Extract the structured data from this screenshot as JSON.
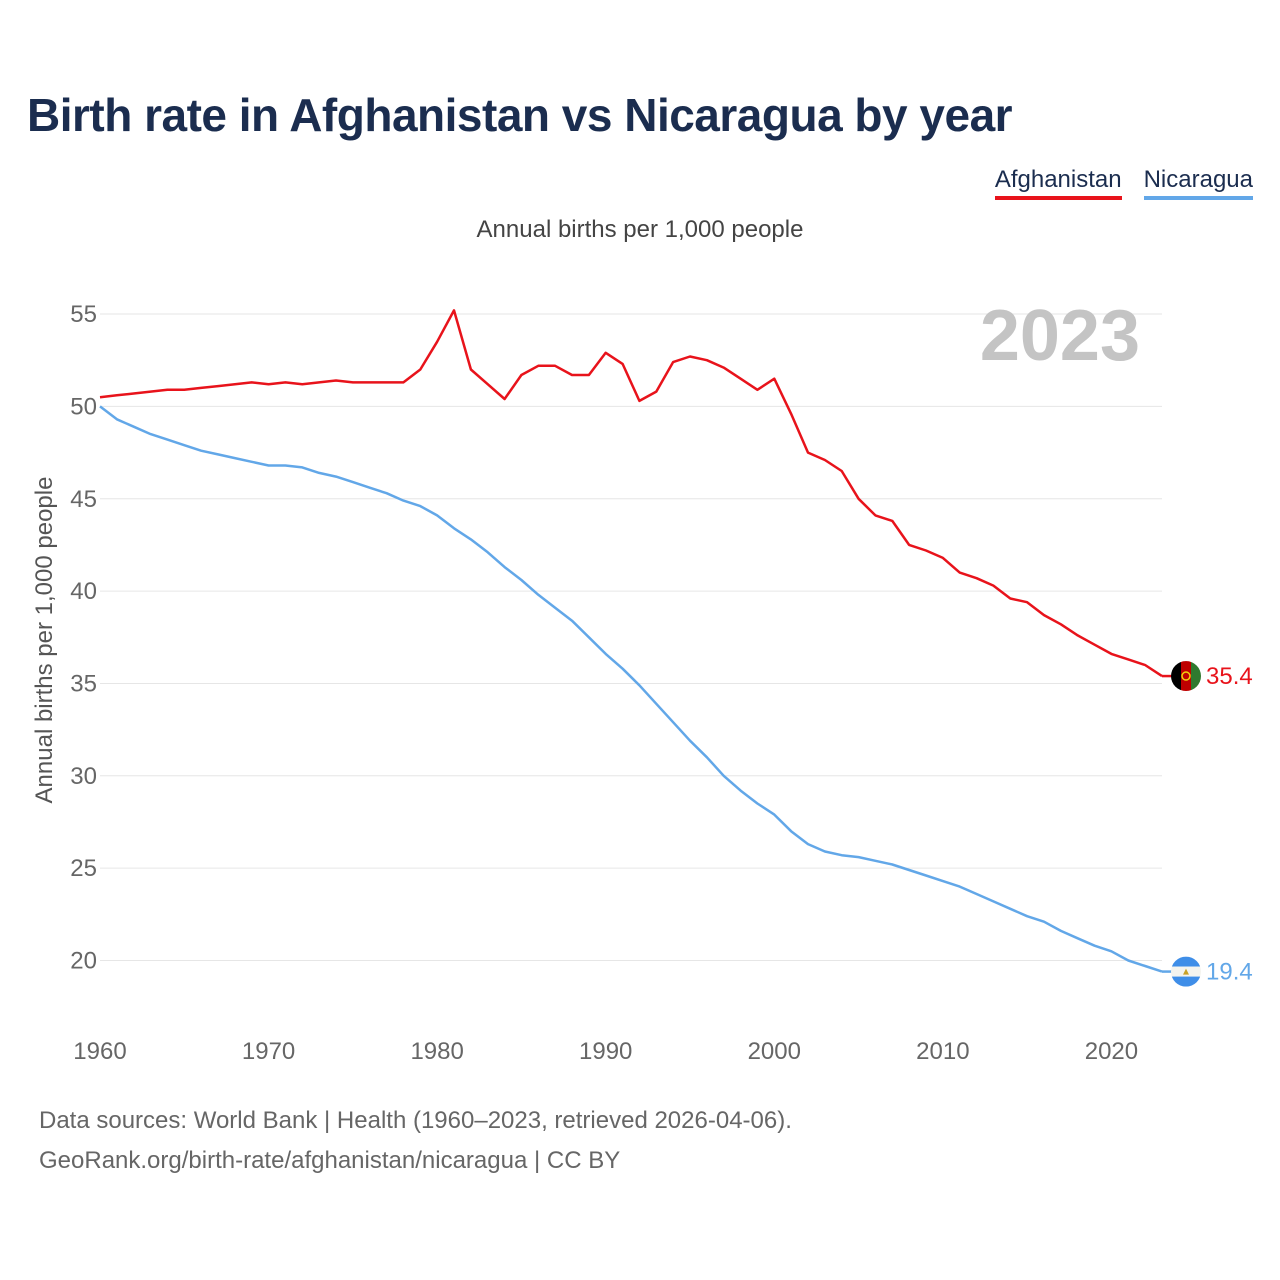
{
  "title": "Birth rate in Afghanistan vs Nicaragua by year",
  "legend": [
    {
      "label": "Afghanistan",
      "color": "#e8131b"
    },
    {
      "label": "Nicaragua",
      "color": "#62a7e8"
    }
  ],
  "footer": {
    "line1": "Data sources: World Bank | Health (1960–2023, retrieved 2026-04-06).",
    "line2": "GeoRank.org/birth-rate/afghanistan/nicaragua | CC BY"
  },
  "chart_data": {
    "type": "line",
    "title": "Birth rate in Afghanistan vs Nicaragua by year",
    "subtitle": "Annual births per 1,000 people",
    "xlabel": "",
    "ylabel": "Annual births per 1,000 people",
    "year_label": "2023",
    "xlim": [
      1960,
      2023
    ],
    "ylim": [
      17,
      56
    ],
    "x_ticks": [
      1960,
      1970,
      1980,
      1990,
      2000,
      2010,
      2020
    ],
    "y_ticks": [
      20,
      25,
      30,
      35,
      40,
      45,
      50,
      55
    ],
    "grid": true,
    "x": [
      1960,
      1961,
      1962,
      1963,
      1964,
      1965,
      1966,
      1967,
      1968,
      1969,
      1970,
      1971,
      1972,
      1973,
      1974,
      1975,
      1976,
      1977,
      1978,
      1979,
      1980,
      1981,
      1982,
      1983,
      1984,
      1985,
      1986,
      1987,
      1988,
      1989,
      1990,
      1991,
      1992,
      1993,
      1994,
      1995,
      1996,
      1997,
      1998,
      1999,
      2000,
      2001,
      2002,
      2003,
      2004,
      2005,
      2006,
      2007,
      2008,
      2009,
      2010,
      2011,
      2012,
      2013,
      2014,
      2015,
      2016,
      2017,
      2018,
      2019,
      2020,
      2021,
      2022,
      2023
    ],
    "series": [
      {
        "name": "Afghanistan",
        "color": "#e8131b",
        "end_label": "35.4",
        "values": [
          50.5,
          50.6,
          50.7,
          50.8,
          50.9,
          50.9,
          51.0,
          51.1,
          51.2,
          51.3,
          51.2,
          51.3,
          51.2,
          51.3,
          51.4,
          51.3,
          51.3,
          51.3,
          51.3,
          52.0,
          53.5,
          55.2,
          52.0,
          51.2,
          50.4,
          51.7,
          52.2,
          52.2,
          51.7,
          51.7,
          52.9,
          52.3,
          50.3,
          50.8,
          52.4,
          52.7,
          52.5,
          52.1,
          51.5,
          50.9,
          51.5,
          49.6,
          47.5,
          47.1,
          46.5,
          45.0,
          44.1,
          43.8,
          42.5,
          42.2,
          41.8,
          41.0,
          40.7,
          40.3,
          39.6,
          39.4,
          38.7,
          38.2,
          37.6,
          37.1,
          36.6,
          36.3,
          36.0,
          35.4
        ]
      },
      {
        "name": "Nicaragua",
        "color": "#62a7e8",
        "end_label": "19.4",
        "values": [
          50.0,
          49.3,
          48.9,
          48.5,
          48.2,
          47.9,
          47.6,
          47.4,
          47.2,
          47.0,
          46.8,
          46.8,
          46.7,
          46.4,
          46.2,
          45.9,
          45.6,
          45.3,
          44.9,
          44.6,
          44.1,
          43.4,
          42.8,
          42.1,
          41.3,
          40.6,
          39.8,
          39.1,
          38.4,
          37.5,
          36.6,
          35.8,
          34.9,
          33.9,
          32.9,
          31.9,
          31.0,
          30.0,
          29.2,
          28.5,
          27.9,
          27.0,
          26.3,
          25.9,
          25.7,
          25.6,
          25.4,
          25.2,
          24.9,
          24.6,
          24.3,
          24.0,
          23.6,
          23.2,
          22.8,
          22.4,
          22.1,
          21.6,
          21.2,
          20.8,
          20.5,
          20.0,
          19.7,
          19.4
        ]
      }
    ]
  }
}
